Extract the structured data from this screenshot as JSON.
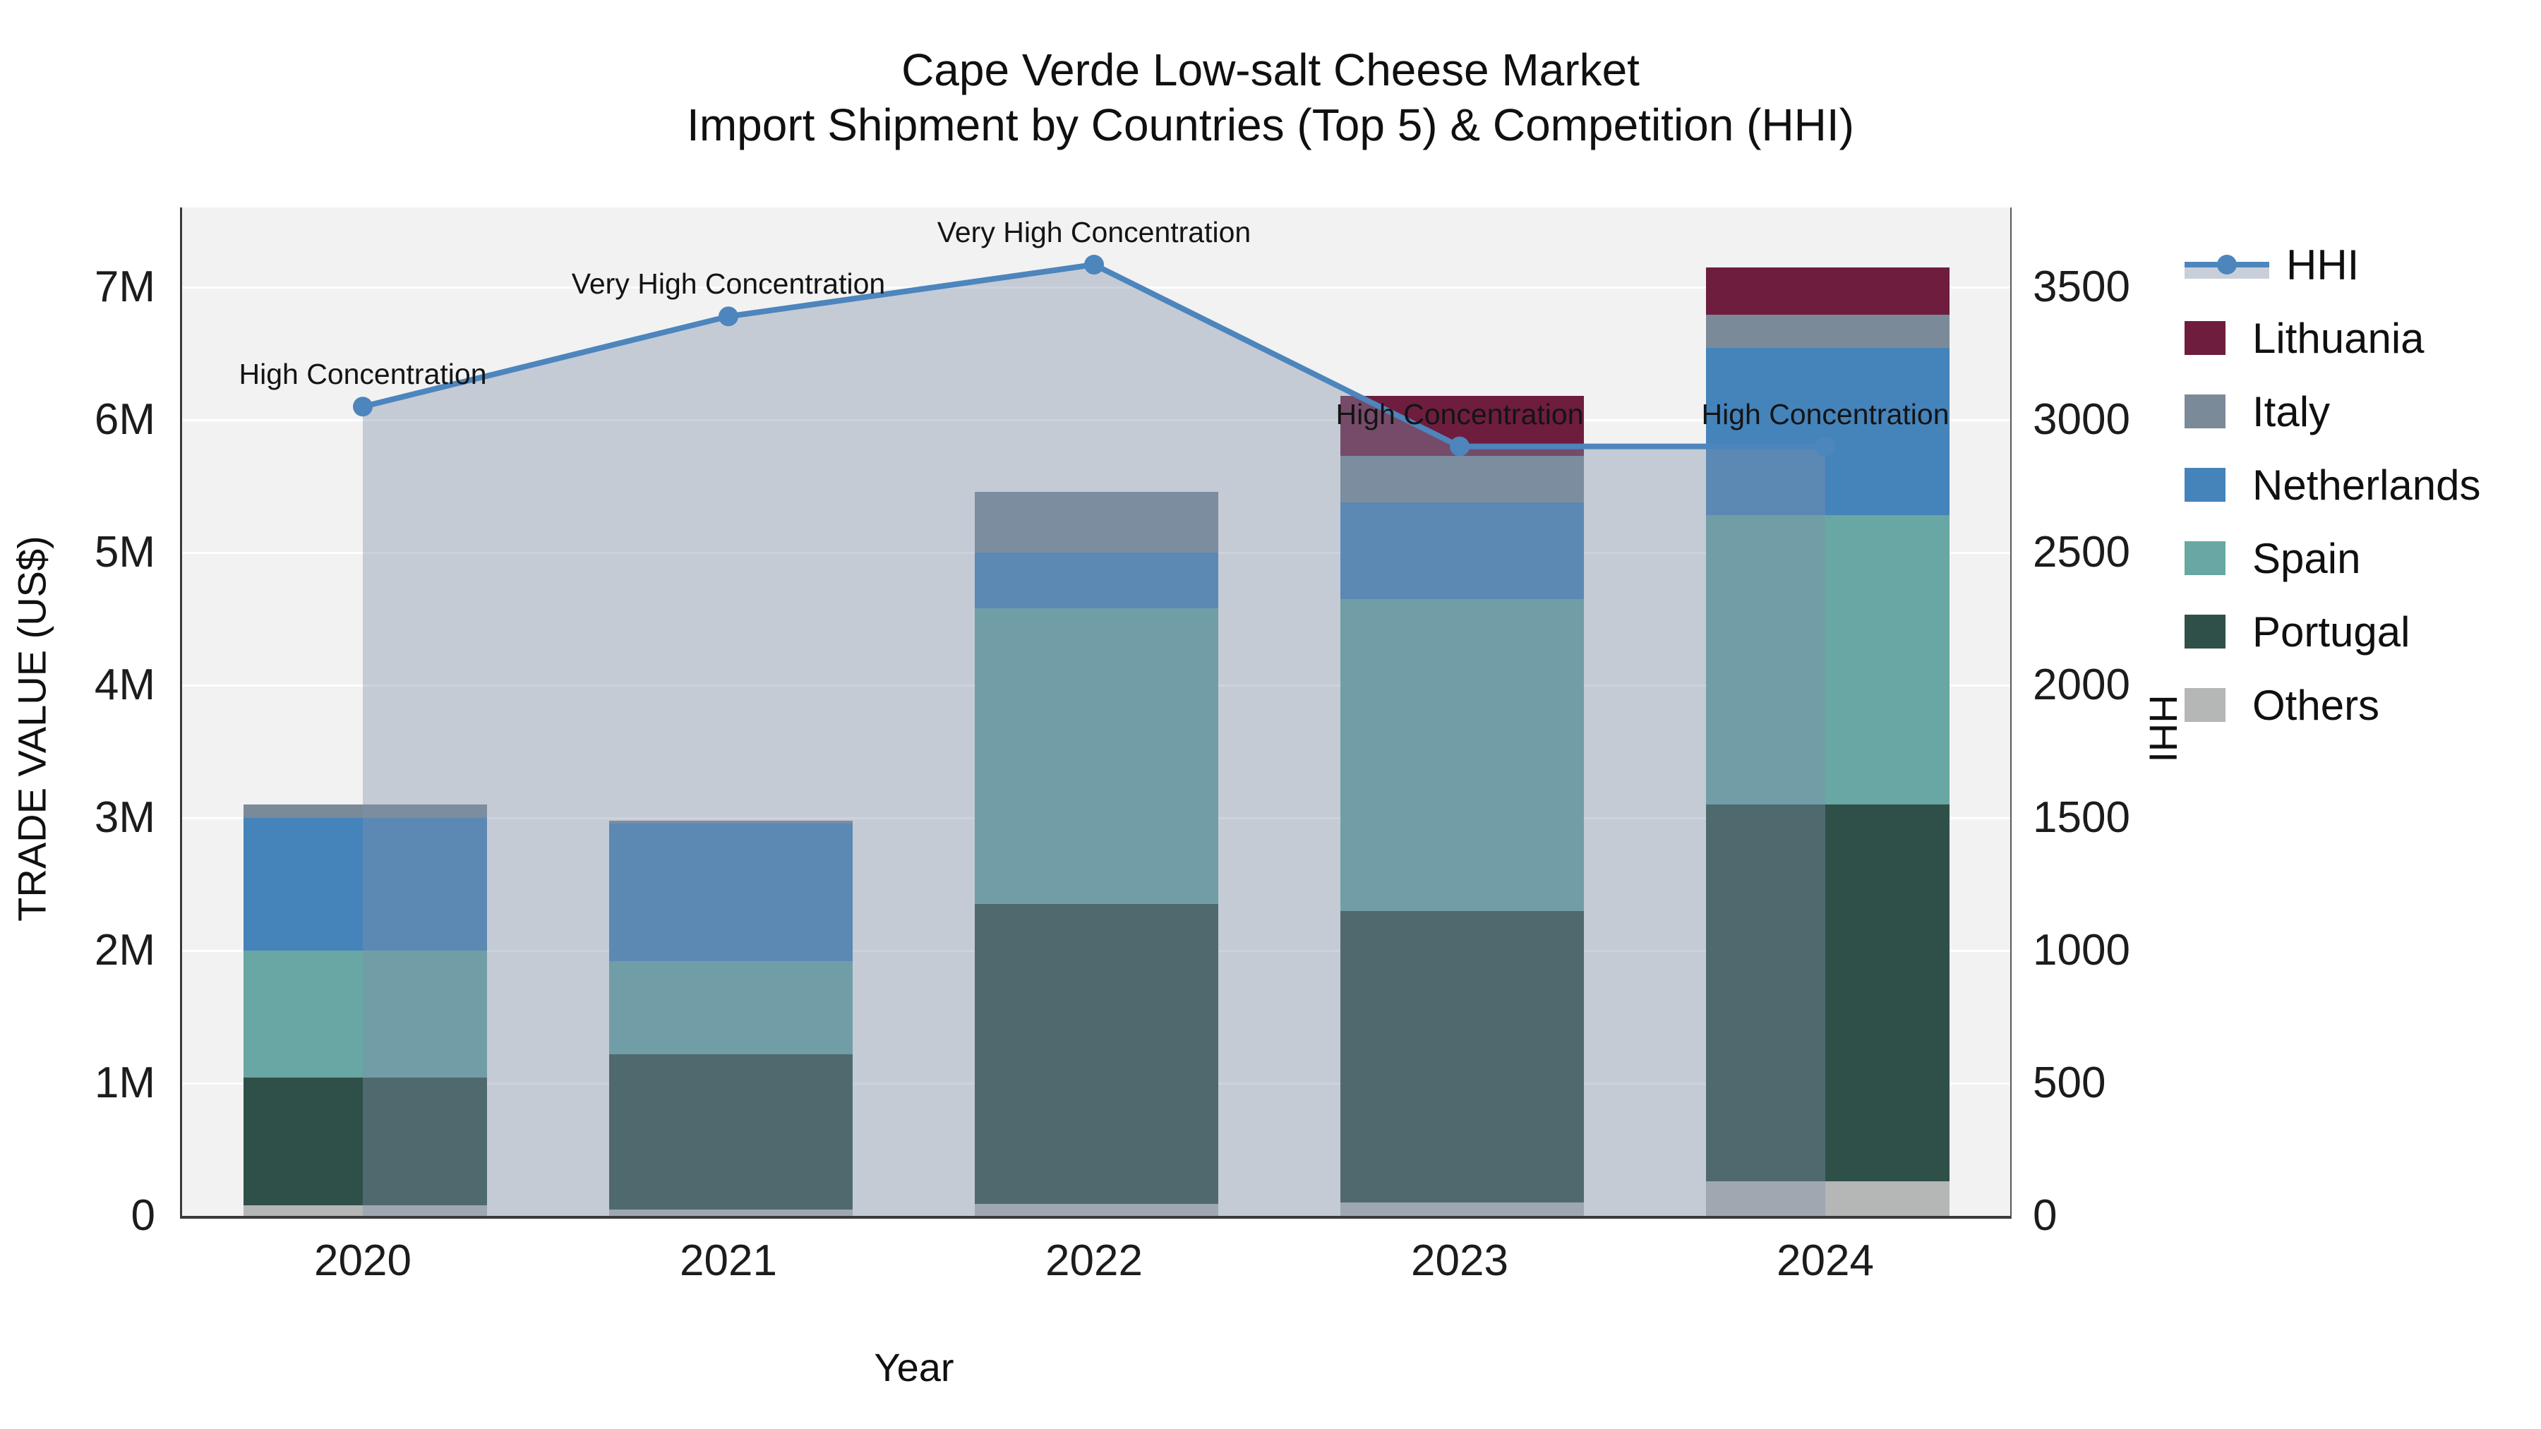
{
  "title": {
    "line1": "Cape Verde Low-salt Cheese Market",
    "line2": "Import Shipment by Countries (Top 5) & Competition (HHI)"
  },
  "axes": {
    "y_left": {
      "label": "TRADE VALUE (US$)",
      "tick_labels": [
        "0",
        "1M",
        "2M",
        "3M",
        "4M",
        "5M",
        "6M",
        "7M"
      ],
      "tick_values_m": [
        0,
        1,
        2,
        3,
        4,
        5,
        6,
        7
      ],
      "max_m": 7.6
    },
    "y_right": {
      "label": "HHI",
      "tick_labels": [
        "0",
        "500",
        "1000",
        "1500",
        "2000",
        "2500",
        "3000",
        "3500"
      ],
      "tick_values": [
        0,
        500,
        1000,
        1500,
        2000,
        2500,
        3000,
        3500
      ],
      "max": 3800
    },
    "x": {
      "label": "Year",
      "categories": [
        "2020",
        "2021",
        "2022",
        "2023",
        "2024"
      ]
    }
  },
  "chart_data": {
    "type": "bar",
    "subtype": "stacked-bar-with-line",
    "categories": [
      "2020",
      "2021",
      "2022",
      "2023",
      "2024"
    ],
    "series": [
      {
        "name": "Others",
        "color": "#b4b7b6",
        "values_musd": [
          0.08,
          0.05,
          0.09,
          0.1,
          0.26
        ]
      },
      {
        "name": "Portugal",
        "color": "#2f5049",
        "values_musd": [
          0.96,
          1.17,
          2.26,
          2.2,
          2.84
        ]
      },
      {
        "name": "Spain",
        "color": "#68a7a3",
        "values_musd": [
          0.96,
          0.7,
          2.23,
          2.35,
          2.18
        ]
      },
      {
        "name": "Netherlands",
        "color": "#4583bb",
        "values_musd": [
          1.0,
          1.04,
          0.42,
          0.73,
          1.26
        ]
      },
      {
        "name": "Italy",
        "color": "#7b8a99",
        "values_musd": [
          0.1,
          0.02,
          0.46,
          0.35,
          0.25
        ]
      },
      {
        "name": "Lithuania",
        "color": "#6e1d3e",
        "values_musd": [
          0.0,
          0.0,
          0.0,
          0.45,
          0.36
        ]
      }
    ],
    "totals_musd": [
      3.1,
      2.98,
      5.46,
      6.18,
      7.15
    ],
    "line": {
      "name": "HHI",
      "color": "#4d85bd",
      "area_fill": "rgba(128,145,170,0.40)",
      "axis": "right",
      "values": [
        3050,
        3390,
        3585,
        2900,
        2900
      ]
    },
    "annotations": [
      {
        "category": "2020",
        "text": "High Concentration"
      },
      {
        "category": "2021",
        "text": "Very High Concentration"
      },
      {
        "category": "2022",
        "text": "Very High Concentration"
      },
      {
        "category": "2023",
        "text": "High Concentration"
      },
      {
        "category": "2024",
        "text": "High Concentration"
      }
    ],
    "grid": "on",
    "legend_position": "right-top",
    "ylim_left_musd": [
      0,
      7.6
    ],
    "ylim_right_hhi": [
      0,
      3800
    ]
  },
  "legend": {
    "items": [
      {
        "label": "HHI",
        "kind": "line"
      },
      {
        "label": "Lithuania",
        "kind": "swatch",
        "series": "Lithuania"
      },
      {
        "label": "Italy",
        "kind": "swatch",
        "series": "Italy"
      },
      {
        "label": "Netherlands",
        "kind": "swatch",
        "series": "Netherlands"
      },
      {
        "label": "Spain",
        "kind": "swatch",
        "series": "Spain"
      },
      {
        "label": "Portugal",
        "kind": "swatch",
        "series": "Portugal"
      },
      {
        "label": "Others",
        "kind": "swatch",
        "series": "Others"
      }
    ]
  },
  "style_colors": {
    "plot_background": "#f2f2f2",
    "gridline": "#ffffff",
    "axis_line": "#3a3a3a",
    "hhi_line": "#4d85bd",
    "hhi_area": "rgba(128,145,170,0.40)",
    "hhi_legend_band": "#c9cfda"
  }
}
